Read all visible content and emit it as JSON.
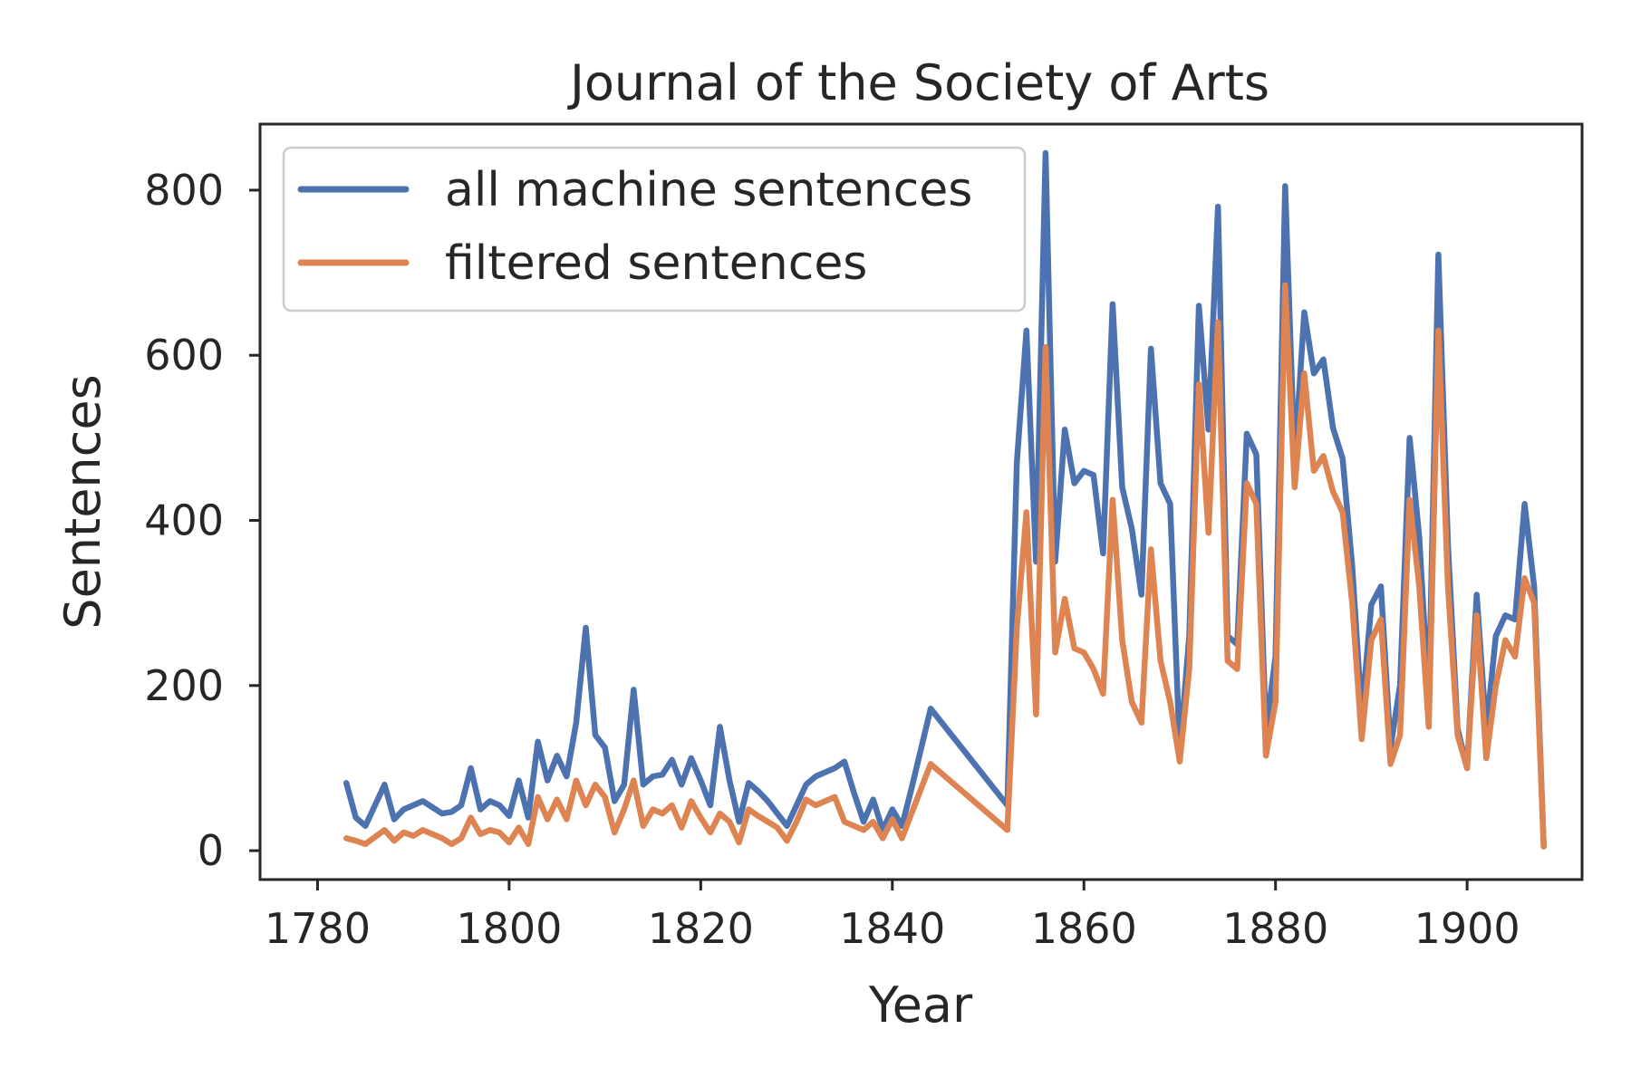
{
  "chart_data": {
    "type": "line",
    "title": "Journal of the Society of Arts",
    "xlabel": "Year",
    "ylabel": "Sentences",
    "xlim": [
      1774,
      1912
    ],
    "ylim": [
      -35,
      880
    ],
    "xticks": [
      1780,
      1800,
      1820,
      1840,
      1860,
      1880,
      1900
    ],
    "yticks": [
      0,
      200,
      400,
      600,
      800
    ],
    "grid": false,
    "legend_position": "top-left",
    "series": [
      {
        "name": "all machine sentences",
        "color": "#4c72b0",
        "points": [
          [
            1783,
            82
          ],
          [
            1784,
            40
          ],
          [
            1785,
            30
          ],
          [
            1787,
            80
          ],
          [
            1788,
            38
          ],
          [
            1789,
            50
          ],
          [
            1791,
            60
          ],
          [
            1793,
            45
          ],
          [
            1794,
            47
          ],
          [
            1795,
            55
          ],
          [
            1796,
            100
          ],
          [
            1797,
            50
          ],
          [
            1798,
            60
          ],
          [
            1799,
            55
          ],
          [
            1800,
            42
          ],
          [
            1801,
            85
          ],
          [
            1802,
            40
          ],
          [
            1803,
            132
          ],
          [
            1804,
            85
          ],
          [
            1805,
            115
          ],
          [
            1806,
            90
          ],
          [
            1807,
            155
          ],
          [
            1808,
            270
          ],
          [
            1809,
            140
          ],
          [
            1810,
            125
          ],
          [
            1811,
            60
          ],
          [
            1812,
            80
          ],
          [
            1813,
            195
          ],
          [
            1814,
            80
          ],
          [
            1815,
            90
          ],
          [
            1816,
            92
          ],
          [
            1817,
            110
          ],
          [
            1818,
            80
          ],
          [
            1819,
            112
          ],
          [
            1820,
            85
          ],
          [
            1821,
            55
          ],
          [
            1822,
            150
          ],
          [
            1823,
            85
          ],
          [
            1824,
            35
          ],
          [
            1825,
            82
          ],
          [
            1826,
            72
          ],
          [
            1827,
            60
          ],
          [
            1828,
            45
          ],
          [
            1829,
            30
          ],
          [
            1830,
            55
          ],
          [
            1831,
            80
          ],
          [
            1832,
            90
          ],
          [
            1833,
            95
          ],
          [
            1834,
            100
          ],
          [
            1835,
            108
          ],
          [
            1836,
            70
          ],
          [
            1837,
            35
          ],
          [
            1838,
            62
          ],
          [
            1839,
            25
          ],
          [
            1840,
            50
          ],
          [
            1841,
            30
          ],
          [
            1842,
            75
          ],
          [
            1844,
            172
          ],
          [
            1852,
            55
          ],
          [
            1853,
            470
          ],
          [
            1854,
            630
          ],
          [
            1855,
            350
          ],
          [
            1856,
            845
          ],
          [
            1857,
            350
          ],
          [
            1858,
            510
          ],
          [
            1859,
            445
          ],
          [
            1860,
            460
          ],
          [
            1861,
            455
          ],
          [
            1862,
            360
          ],
          [
            1863,
            662
          ],
          [
            1864,
            440
          ],
          [
            1865,
            390
          ],
          [
            1866,
            310
          ],
          [
            1867,
            608
          ],
          [
            1868,
            445
          ],
          [
            1869,
            420
          ],
          [
            1870,
            120
          ],
          [
            1871,
            260
          ],
          [
            1872,
            660
          ],
          [
            1873,
            510
          ],
          [
            1874,
            780
          ],
          [
            1875,
            260
          ],
          [
            1876,
            250
          ],
          [
            1877,
            505
          ],
          [
            1878,
            480
          ],
          [
            1879,
            145
          ],
          [
            1880,
            235
          ],
          [
            1881,
            805
          ],
          [
            1882,
            470
          ],
          [
            1883,
            652
          ],
          [
            1884,
            578
          ],
          [
            1885,
            595
          ],
          [
            1886,
            512
          ],
          [
            1887,
            475
          ],
          [
            1888,
            345
          ],
          [
            1889,
            165
          ],
          [
            1890,
            298
          ],
          [
            1891,
            320
          ],
          [
            1892,
            125
          ],
          [
            1893,
            200
          ],
          [
            1894,
            500
          ],
          [
            1895,
            380
          ],
          [
            1896,
            180
          ],
          [
            1897,
            722
          ],
          [
            1898,
            370
          ],
          [
            1899,
            148
          ],
          [
            1900,
            100
          ],
          [
            1901,
            310
          ],
          [
            1902,
            145
          ],
          [
            1903,
            260
          ],
          [
            1904,
            285
          ],
          [
            1905,
            280
          ],
          [
            1906,
            420
          ],
          [
            1907,
            320
          ],
          [
            1908,
            5
          ]
        ]
      },
      {
        "name": "filtered sentences",
        "color": "#dd8452",
        "points": [
          [
            1783,
            15
          ],
          [
            1784,
            12
          ],
          [
            1785,
            8
          ],
          [
            1787,
            25
          ],
          [
            1788,
            12
          ],
          [
            1789,
            22
          ],
          [
            1790,
            18
          ],
          [
            1791,
            25
          ],
          [
            1793,
            15
          ],
          [
            1794,
            8
          ],
          [
            1795,
            15
          ],
          [
            1796,
            40
          ],
          [
            1797,
            20
          ],
          [
            1798,
            25
          ],
          [
            1799,
            22
          ],
          [
            1800,
            10
          ],
          [
            1801,
            28
          ],
          [
            1802,
            8
          ],
          [
            1803,
            65
          ],
          [
            1804,
            38
          ],
          [
            1805,
            62
          ],
          [
            1806,
            38
          ],
          [
            1807,
            85
          ],
          [
            1808,
            55
          ],
          [
            1809,
            80
          ],
          [
            1810,
            65
          ],
          [
            1811,
            22
          ],
          [
            1812,
            50
          ],
          [
            1813,
            85
          ],
          [
            1814,
            30
          ],
          [
            1815,
            50
          ],
          [
            1816,
            45
          ],
          [
            1817,
            55
          ],
          [
            1818,
            28
          ],
          [
            1819,
            60
          ],
          [
            1820,
            40
          ],
          [
            1821,
            22
          ],
          [
            1822,
            45
          ],
          [
            1823,
            35
          ],
          [
            1824,
            10
          ],
          [
            1825,
            50
          ],
          [
            1826,
            42
          ],
          [
            1827,
            35
          ],
          [
            1828,
            28
          ],
          [
            1829,
            12
          ],
          [
            1830,
            35
          ],
          [
            1831,
            62
          ],
          [
            1832,
            55
          ],
          [
            1833,
            60
          ],
          [
            1834,
            65
          ],
          [
            1835,
            35
          ],
          [
            1836,
            30
          ],
          [
            1837,
            25
          ],
          [
            1838,
            35
          ],
          [
            1839,
            15
          ],
          [
            1840,
            38
          ],
          [
            1841,
            15
          ],
          [
            1842,
            45
          ],
          [
            1844,
            105
          ],
          [
            1852,
            25
          ],
          [
            1853,
            270
          ],
          [
            1854,
            410
          ],
          [
            1855,
            165
          ],
          [
            1856,
            610
          ],
          [
            1857,
            240
          ],
          [
            1858,
            305
          ],
          [
            1859,
            245
          ],
          [
            1860,
            240
          ],
          [
            1861,
            220
          ],
          [
            1862,
            190
          ],
          [
            1863,
            425
          ],
          [
            1864,
            255
          ],
          [
            1865,
            180
          ],
          [
            1866,
            155
          ],
          [
            1867,
            365
          ],
          [
            1868,
            230
          ],
          [
            1869,
            180
          ],
          [
            1870,
            108
          ],
          [
            1871,
            220
          ],
          [
            1872,
            565
          ],
          [
            1873,
            385
          ],
          [
            1874,
            640
          ],
          [
            1875,
            230
          ],
          [
            1876,
            220
          ],
          [
            1877,
            445
          ],
          [
            1878,
            420
          ],
          [
            1879,
            115
          ],
          [
            1880,
            180
          ],
          [
            1881,
            685
          ],
          [
            1882,
            440
          ],
          [
            1883,
            578
          ],
          [
            1884,
            460
          ],
          [
            1885,
            478
          ],
          [
            1886,
            435
          ],
          [
            1887,
            410
          ],
          [
            1888,
            300
          ],
          [
            1889,
            135
          ],
          [
            1890,
            255
          ],
          [
            1891,
            280
          ],
          [
            1892,
            105
          ],
          [
            1893,
            140
          ],
          [
            1894,
            425
          ],
          [
            1895,
            320
          ],
          [
            1896,
            150
          ],
          [
            1897,
            630
          ],
          [
            1898,
            320
          ],
          [
            1899,
            140
          ],
          [
            1900,
            100
          ],
          [
            1901,
            285
          ],
          [
            1902,
            112
          ],
          [
            1903,
            200
          ],
          [
            1904,
            255
          ],
          [
            1905,
            235
          ],
          [
            1906,
            330
          ],
          [
            1907,
            300
          ],
          [
            1908,
            5
          ]
        ]
      }
    ]
  }
}
